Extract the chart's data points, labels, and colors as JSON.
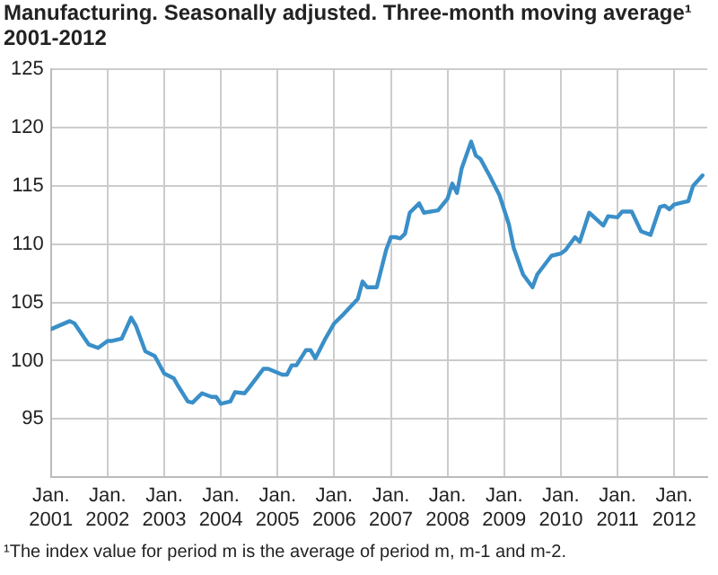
{
  "chart_data": {
    "type": "line",
    "title": "Manufacturing. Seasonally adjusted. Three-month moving average¹",
    "subtitle": "2001-2012",
    "annotations": [
      "¹The index value for period m is the average of period m, m-1 and m-2."
    ],
    "x": [
      "2001-01",
      "2001-05",
      "2001-06",
      "2001-09",
      "2001-11",
      "2002-01",
      "2002-02",
      "2002-04",
      "2002-06",
      "2002-07",
      "2002-09",
      "2002-11",
      "2003-01",
      "2003-03",
      "2003-04",
      "2003-06",
      "2003-07",
      "2003-09",
      "2003-11",
      "2003-12",
      "2004-01",
      "2004-03",
      "2004-04",
      "2004-06",
      "2004-07",
      "2004-10",
      "2004-11",
      "2005-02",
      "2005-03",
      "2005-04",
      "2005-05",
      "2005-07",
      "2005-08",
      "2005-09",
      "2005-11",
      "2006-01",
      "2006-03",
      "2006-06",
      "2006-07",
      "2006-08",
      "2006-10",
      "2006-12",
      "2007-01",
      "2007-02",
      "2007-03",
      "2007-04",
      "2007-05",
      "2007-07",
      "2007-08",
      "2007-11",
      "2008-01",
      "2008-02",
      "2008-03",
      "2008-04",
      "2008-06",
      "2008-07",
      "2008-08",
      "2008-10",
      "2008-12",
      "2009-02",
      "2009-03",
      "2009-05",
      "2009-07",
      "2009-08",
      "2009-11",
      "2010-01",
      "2010-02",
      "2010-04",
      "2010-05",
      "2010-07",
      "2010-10",
      "2010-11",
      "2011-01",
      "2011-02",
      "2011-04",
      "2011-06",
      "2011-08",
      "2011-10",
      "2011-11",
      "2011-12",
      "2012-01",
      "2012-04",
      "2012-05",
      "2012-07"
    ],
    "series": [
      {
        "color": "#3a8fc8",
        "values": [
          102.7,
          103.4,
          103.2,
          101.4,
          101.1,
          101.7,
          101.7,
          101.9,
          103.7,
          103.0,
          100.8,
          100.4,
          98.9,
          98.5,
          97.8,
          96.5,
          96.4,
          97.2,
          96.9,
          96.9,
          96.3,
          96.5,
          97.3,
          97.2,
          97.7,
          99.3,
          99.3,
          98.8,
          98.8,
          99.6,
          99.6,
          100.9,
          100.9,
          100.2,
          101.8,
          103.2,
          104.0,
          105.3,
          106.8,
          106.3,
          106.3,
          109.5,
          110.6,
          110.6,
          110.5,
          110.9,
          112.7,
          113.5,
          112.7,
          112.9,
          113.9,
          115.2,
          114.4,
          116.5,
          118.8,
          117.6,
          117.3,
          115.8,
          114.2,
          111.7,
          109.7,
          107.4,
          106.3,
          107.4,
          109.0,
          109.2,
          109.5,
          110.6,
          110.2,
          112.7,
          111.6,
          112.4,
          112.3,
          112.8,
          112.8,
          111.1,
          110.8,
          113.2,
          113.3,
          113.0,
          113.4,
          113.7,
          115.0,
          115.9
        ]
      }
    ],
    "xlim": [
      "2001-01",
      "2012-08"
    ],
    "xticks": [
      {
        "value": "2001-01",
        "label": "Jan. 2001"
      },
      {
        "value": "2002-01",
        "label": "Jan. 2002"
      },
      {
        "value": "2003-01",
        "label": "Jan. 2003"
      },
      {
        "value": "2004-01",
        "label": "Jan. 2004"
      },
      {
        "value": "2005-01",
        "label": "Jan. 2005"
      },
      {
        "value": "2006-01",
        "label": "Jan. 2006"
      },
      {
        "value": "2007-01",
        "label": "Jan. 2007"
      },
      {
        "value": "2008-01",
        "label": "Jan. 2008"
      },
      {
        "value": "2009-01",
        "label": "Jan. 2009"
      },
      {
        "value": "2010-01",
        "label": "Jan. 2010"
      },
      {
        "value": "2011-01",
        "label": "Jan. 2011"
      },
      {
        "value": "2012-01",
        "label": "Jan. 2012"
      }
    ],
    "ylim": [
      90,
      125
    ],
    "yticks": [
      95,
      100,
      105,
      110,
      115,
      120,
      125
    ],
    "grid": true,
    "legend": false,
    "marker": "none",
    "line_style": "solid"
  }
}
